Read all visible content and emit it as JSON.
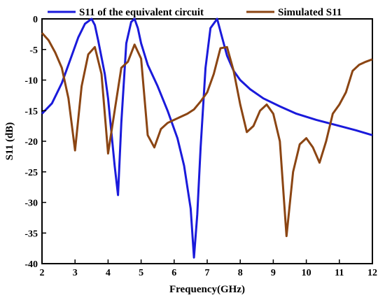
{
  "chart_data": {
    "type": "line",
    "title": "",
    "xlabel": "Frequency(GHz)",
    "ylabel": "S11 (dB)",
    "xlim": [
      2,
      12
    ],
    "ylim": [
      -40,
      0
    ],
    "xticks": [
      2,
      3,
      4,
      5,
      6,
      7,
      8,
      9,
      10,
      11,
      12
    ],
    "yticks": [
      0,
      -5,
      -10,
      -15,
      -20,
      -25,
      -30,
      -35,
      -40
    ],
    "grid": false,
    "legend_position": "top",
    "series": [
      {
        "name": "S11 of the equivalent circuit",
        "color": "#1a1adb",
        "x": [
          2.0,
          2.3,
          2.6,
          2.9,
          3.1,
          3.3,
          3.5,
          3.6,
          3.7,
          3.9,
          4.0,
          4.1,
          4.2,
          4.3,
          4.4,
          4.55,
          4.7,
          4.8,
          4.9,
          5.0,
          5.2,
          5.5,
          5.8,
          6.1,
          6.3,
          6.5,
          6.6,
          6.7,
          6.8,
          6.95,
          7.1,
          7.3,
          7.45,
          7.6,
          7.8,
          8.0,
          8.3,
          8.7,
          9.2,
          9.7,
          10.3,
          11.0,
          11.5,
          12.0
        ],
        "y": [
          -15.5,
          -13.8,
          -10.5,
          -6.0,
          -3.0,
          -0.8,
          0.0,
          -1.0,
          -3.5,
          -9.0,
          -13.0,
          -18.5,
          -24.0,
          -28.8,
          -17.0,
          -4.0,
          -0.5,
          0.0,
          -1.5,
          -4.0,
          -7.5,
          -11.0,
          -15.0,
          -19.5,
          -24.0,
          -31.0,
          -39.0,
          -32.0,
          -21.0,
          -8.0,
          -1.5,
          0.0,
          -3.0,
          -6.0,
          -8.5,
          -10.0,
          -11.5,
          -13.0,
          -14.3,
          -15.5,
          -16.5,
          -17.5,
          -18.2,
          -19.0
        ]
      },
      {
        "name": "Simulated S11",
        "color": "#8b4513",
        "x": [
          2.0,
          2.2,
          2.4,
          2.6,
          2.8,
          3.0,
          3.2,
          3.4,
          3.6,
          3.8,
          4.0,
          4.2,
          4.4,
          4.6,
          4.8,
          5.0,
          5.2,
          5.4,
          5.6,
          5.8,
          6.0,
          6.2,
          6.4,
          6.6,
          6.8,
          7.0,
          7.2,
          7.4,
          7.6,
          7.8,
          8.0,
          8.2,
          8.4,
          8.6,
          8.8,
          9.0,
          9.2,
          9.4,
          9.6,
          9.8,
          10.0,
          10.2,
          10.4,
          10.6,
          10.8,
          11.0,
          11.2,
          11.4,
          11.6,
          11.8,
          12.0
        ],
        "y": [
          -2.3,
          -3.5,
          -5.5,
          -8.0,
          -13.0,
          -21.5,
          -11.0,
          -5.8,
          -4.6,
          -9.0,
          -22.0,
          -15.0,
          -8.0,
          -7.0,
          -4.2,
          -6.5,
          -19.0,
          -21.0,
          -18.0,
          -17.0,
          -16.5,
          -16.0,
          -15.5,
          -14.8,
          -13.5,
          -12.0,
          -9.0,
          -4.8,
          -4.6,
          -8.5,
          -14.0,
          -18.5,
          -17.5,
          -15.0,
          -14.0,
          -15.5,
          -20.0,
          -35.5,
          -25.0,
          -20.5,
          -19.5,
          -21.0,
          -23.5,
          -20.0,
          -15.5,
          -14.0,
          -12.0,
          -8.5,
          -7.5,
          -7.0,
          -6.6
        ]
      }
    ]
  }
}
